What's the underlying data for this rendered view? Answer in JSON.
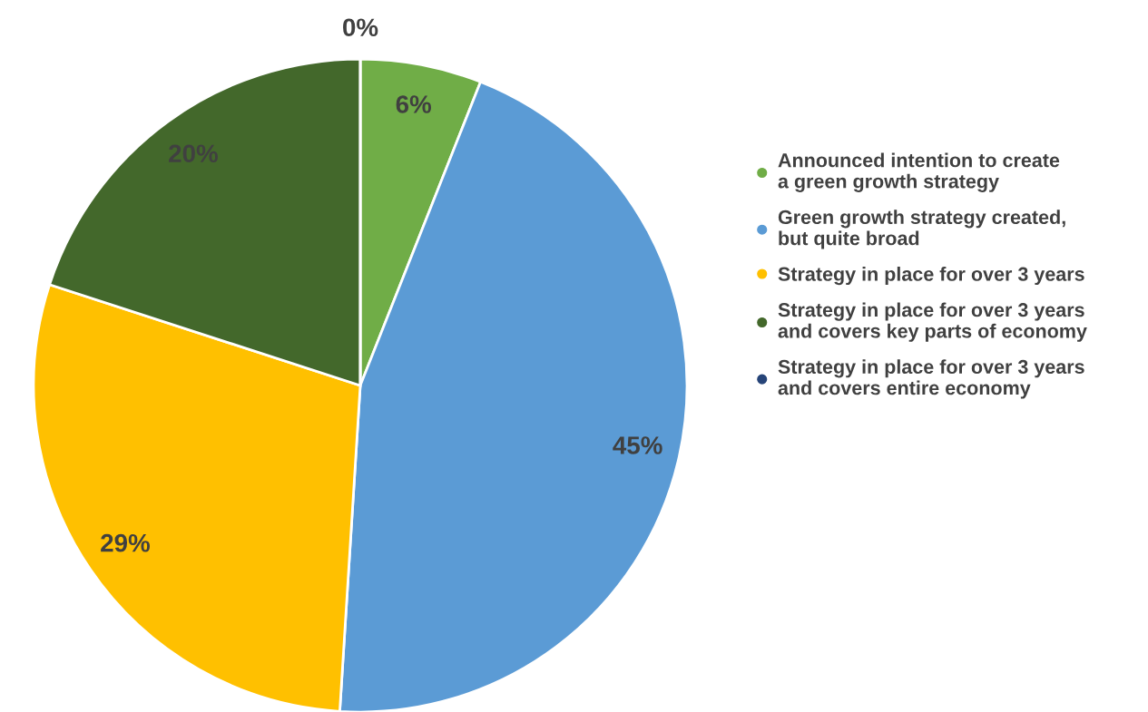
{
  "chart_data": {
    "type": "pie",
    "categories": [
      "Announced intention to create\na green growth strategy",
      "Green growth strategy created,\nbut quite broad",
      "Strategy in place for over 3 years",
      "Strategy in place for over 3 years\nand covers key parts of economy",
      "Strategy in place for over 3 years\nand covers entire economy"
    ],
    "values": [
      6,
      45,
      29,
      20,
      0
    ],
    "colors": [
      "#70ad47",
      "#5b9bd5",
      "#ffc000",
      "#43682b",
      "#264478"
    ],
    "value_labels": [
      "6%",
      "45%",
      "29%",
      "20%",
      "0%"
    ],
    "legend": "right"
  }
}
